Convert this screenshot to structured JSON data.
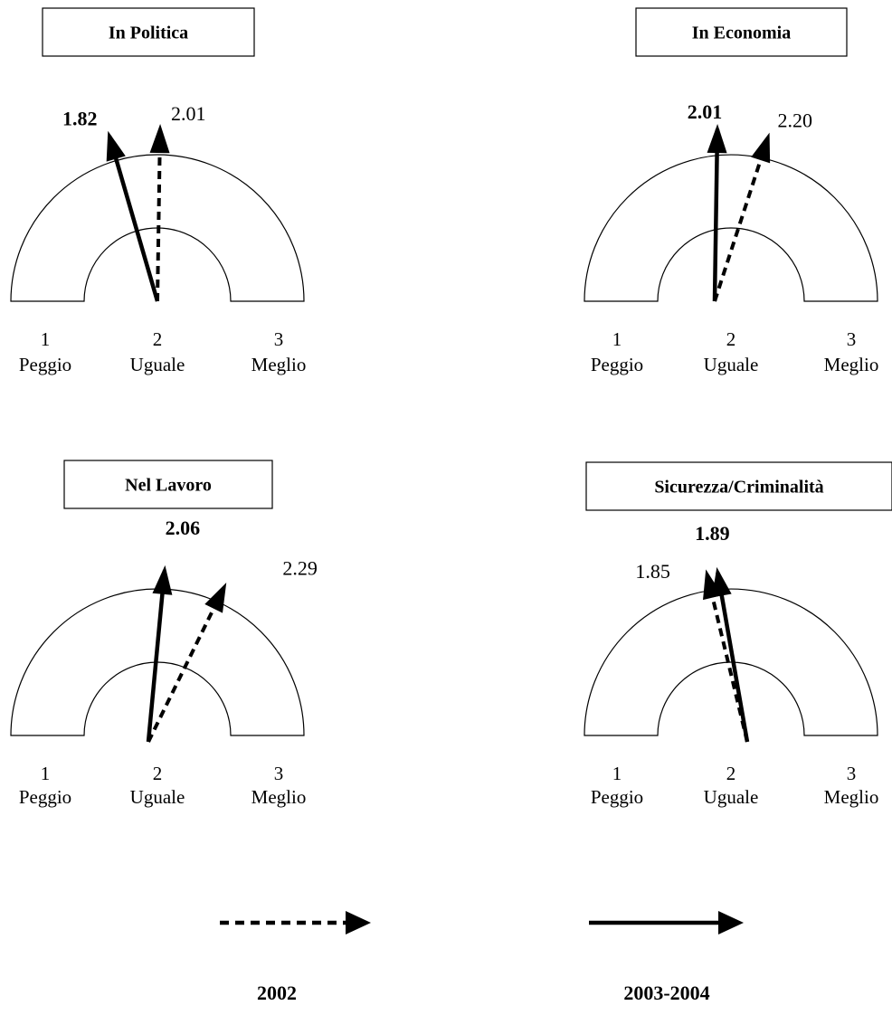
{
  "chart_data": [
    {
      "type": "gauge",
      "title": "In Politica",
      "scale": [
        1,
        3
      ],
      "ticks": [
        {
          "value": "1",
          "label": "Peggio"
        },
        {
          "value": "2",
          "label": "Uguale"
        },
        {
          "value": "3",
          "label": "Meglio"
        }
      ],
      "series": [
        {
          "name": "2002",
          "value": 2.01
        },
        {
          "name": "2003-2004",
          "value": 1.82
        }
      ],
      "value_labels": {
        "2002": "2.01",
        "2003-2004": "1.82"
      }
    },
    {
      "type": "gauge",
      "title": "In Economia",
      "scale": [
        1,
        3
      ],
      "ticks": [
        {
          "value": "1",
          "label": "Peggio"
        },
        {
          "value": "2",
          "label": "Uguale"
        },
        {
          "value": "3",
          "label": "Meglio"
        }
      ],
      "series": [
        {
          "name": "2002",
          "value": 2.2
        },
        {
          "name": "2003-2004",
          "value": 2.01
        }
      ],
      "value_labels": {
        "2002": "2.20",
        "2003-2004": "2.01"
      }
    },
    {
      "type": "gauge",
      "title": "Nel Lavoro",
      "scale": [
        1,
        3
      ],
      "ticks": [
        {
          "value": "1",
          "label": "Peggio"
        },
        {
          "value": "2",
          "label": "Uguale"
        },
        {
          "value": "3",
          "label": "Meglio"
        }
      ],
      "series": [
        {
          "name": "2002",
          "value": 2.29
        },
        {
          "name": "2003-2004",
          "value": 2.06
        }
      ],
      "value_labels": {
        "2002": "2.29",
        "2003-2004": "2.06"
      }
    },
    {
      "type": "gauge",
      "title": "Sicurezza/Criminalità",
      "scale": [
        1,
        3
      ],
      "ticks": [
        {
          "value": "1",
          "label": "Peggio"
        },
        {
          "value": "2",
          "label": "Uguale"
        },
        {
          "value": "3",
          "label": "Meglio"
        }
      ],
      "series": [
        {
          "name": "2002",
          "value": 1.85
        },
        {
          "name": "2003-2004",
          "value": 1.89
        }
      ],
      "value_labels": {
        "2002": "1.85",
        "2003-2004": "1.89"
      }
    }
  ],
  "legend": [
    {
      "label": "2002",
      "style": "dashed"
    },
    {
      "label": "2003-2004",
      "style": "solid"
    }
  ]
}
